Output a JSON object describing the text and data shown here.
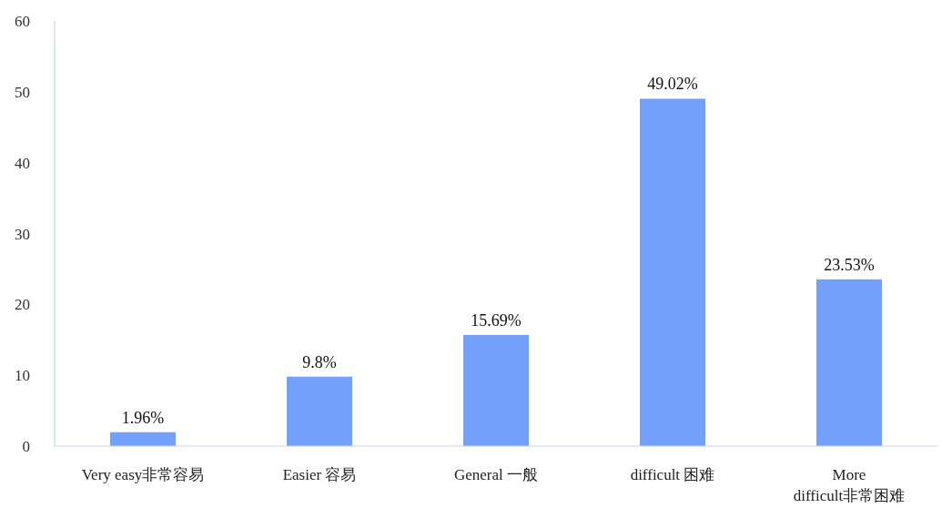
{
  "chart_data": {
    "type": "bar",
    "categories": [
      "Very easy非常容易",
      "Easier 容易",
      "General 一般",
      "difficult 困难",
      "More difficult非常困难"
    ],
    "values": [
      1.96,
      9.8,
      15.69,
      49.02,
      23.53
    ],
    "value_labels": [
      "1.96%",
      "9.8%",
      "15.69%",
      "49.02%",
      "23.53%"
    ],
    "color": "#73a0fa",
    "ylim": [
      0,
      60
    ],
    "yticks": [
      0,
      10,
      20,
      30,
      40,
      50,
      60
    ],
    "grid": false
  }
}
